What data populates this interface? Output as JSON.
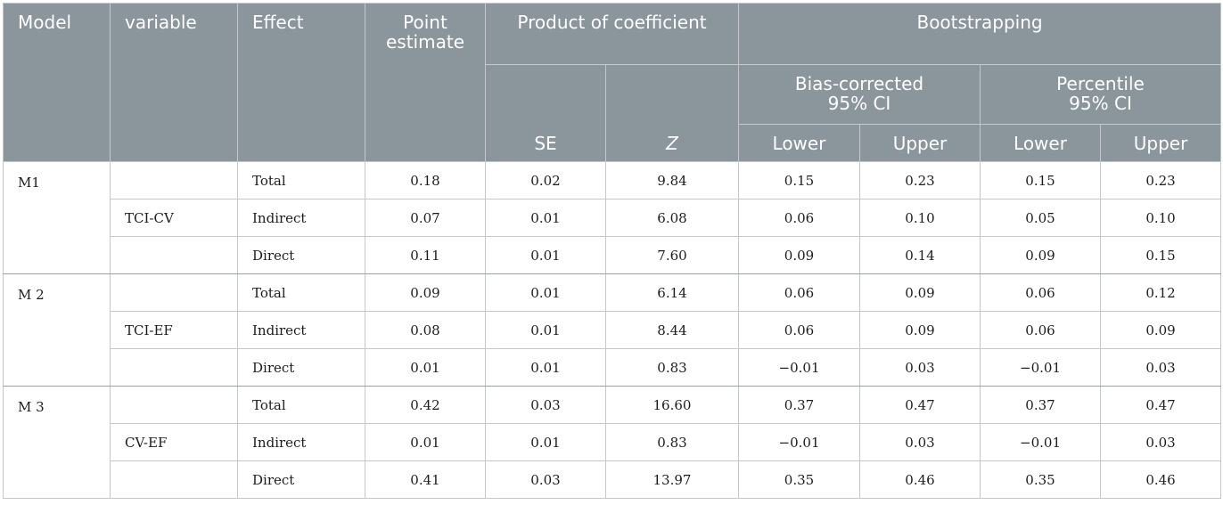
{
  "headers": {
    "model": "Model",
    "variable": "variable",
    "effect": "Effect",
    "point_estimate": [
      "Point",
      "estimate"
    ],
    "product_of_coefficient": "Product of coefficient",
    "bootstrapping": "Bootstrapping",
    "bias_corrected": [
      "Bias-corrected",
      "95% CI"
    ],
    "percentile": [
      "Percentile",
      "95% CI"
    ],
    "se": "SE",
    "z": "Z",
    "lower": "Lower",
    "upper": "Upper"
  },
  "groups": [
    {
      "model": "M1",
      "variable": "TCI-CV",
      "rows": [
        {
          "effect": "Total",
          "point": "0.18",
          "se": "0.02",
          "z": "9.84",
          "bc_lower": "0.15",
          "bc_upper": "0.23",
          "p_lower": "0.15",
          "p_upper": "0.23"
        },
        {
          "effect": "Indirect",
          "point": "0.07",
          "se": "0.01",
          "z": "6.08",
          "bc_lower": "0.06",
          "bc_upper": "0.10",
          "p_lower": "0.05",
          "p_upper": "0.10"
        },
        {
          "effect": "Direct",
          "point": "0.11",
          "se": "0.01",
          "z": "7.60",
          "bc_lower": "0.09",
          "bc_upper": "0.14",
          "p_lower": "0.09",
          "p_upper": "0.15"
        }
      ]
    },
    {
      "model": "M 2",
      "variable": "TCI-EF",
      "rows": [
        {
          "effect": "Total",
          "point": "0.09",
          "se": "0.01",
          "z": "6.14",
          "bc_lower": "0.06",
          "bc_upper": "0.09",
          "p_lower": "0.06",
          "p_upper": "0.12"
        },
        {
          "effect": "Indirect",
          "point": "0.08",
          "se": "0.01",
          "z": "8.44",
          "bc_lower": "0.06",
          "bc_upper": "0.09",
          "p_lower": "0.06",
          "p_upper": "0.09"
        },
        {
          "effect": "Direct",
          "point": "0.01",
          "se": "0.01",
          "z": "0.83",
          "bc_lower": "−0.01",
          "bc_upper": "0.03",
          "p_lower": "−0.01",
          "p_upper": "0.03"
        }
      ]
    },
    {
      "model": "M 3",
      "variable": "CV-EF",
      "rows": [
        {
          "effect": "Total",
          "point": "0.42",
          "se": "0.03",
          "z": "16.60",
          "bc_lower": "0.37",
          "bc_upper": "0.47",
          "p_lower": "0.37",
          "p_upper": "0.47"
        },
        {
          "effect": "Indirect",
          "point": "0.01",
          "se": "0.01",
          "z": "0.83",
          "bc_lower": "−0.01",
          "bc_upper": "0.03",
          "p_lower": "−0.01",
          "p_upper": "0.03"
        },
        {
          "effect": "Direct",
          "point": "0.41",
          "se": "0.03",
          "z": "13.97",
          "bc_lower": "0.35",
          "bc_upper": "0.46",
          "p_lower": "0.35",
          "p_upper": "0.46"
        }
      ]
    }
  ]
}
